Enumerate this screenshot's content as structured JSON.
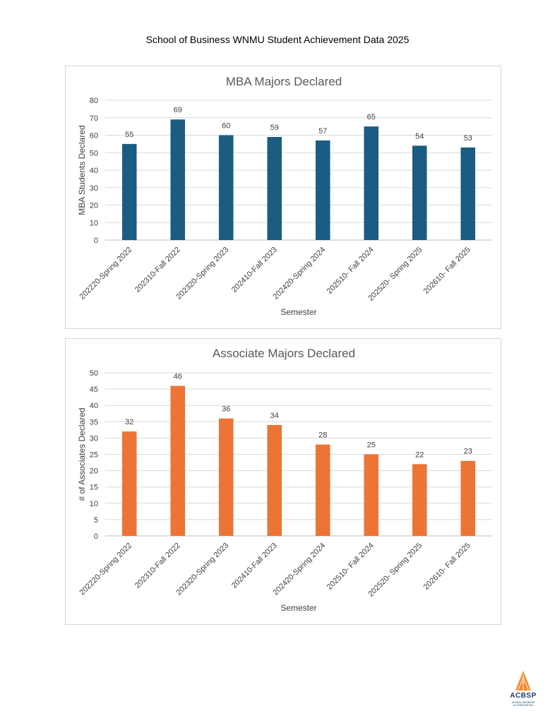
{
  "page": {
    "title": "School of Business WNMU Student Achievement Data 2025"
  },
  "logo": {
    "name": "ACBSP",
    "subtitle_line1": "GLOBAL BUSINESS",
    "subtitle_line2": "ACCREDITATION"
  },
  "chart_data": [
    {
      "type": "bar",
      "title": "MBA Majors Declared",
      "xlabel": "Semester",
      "ylabel": "MBA Students Declared",
      "categories": [
        "202220-Spring 2022",
        "202310-Fall 2022",
        "202320-Spring 2023",
        "202410-Fall 2023",
        "202420-Spring 2024",
        "202510- Fall 2024",
        "202520- Spring 2025",
        "202610- Fall 2025"
      ],
      "values": [
        55,
        69,
        60,
        59,
        57,
        65,
        54,
        53
      ],
      "ylim": [
        0,
        80
      ],
      "ytick_step": 10,
      "color": "#1b5c82",
      "grid": true,
      "data_labels": true
    },
    {
      "type": "bar",
      "title": "Associate Majors Declared",
      "xlabel": "Semester",
      "ylabel": "# of Associates Declared",
      "categories": [
        "202220-Spring 2022",
        "202310-Fall 2022",
        "202320-Spring 2023",
        "202410-Fall 2023",
        "202420-Spring 2024",
        "202510- Fall 2024",
        "202520- Spring 2025",
        "202610- Fall 2025"
      ],
      "values": [
        32,
        46,
        36,
        34,
        28,
        25,
        22,
        23
      ],
      "ylim": [
        0,
        50
      ],
      "ytick_step": 5,
      "color": "#ec7535",
      "grid": true,
      "data_labels": true
    }
  ]
}
